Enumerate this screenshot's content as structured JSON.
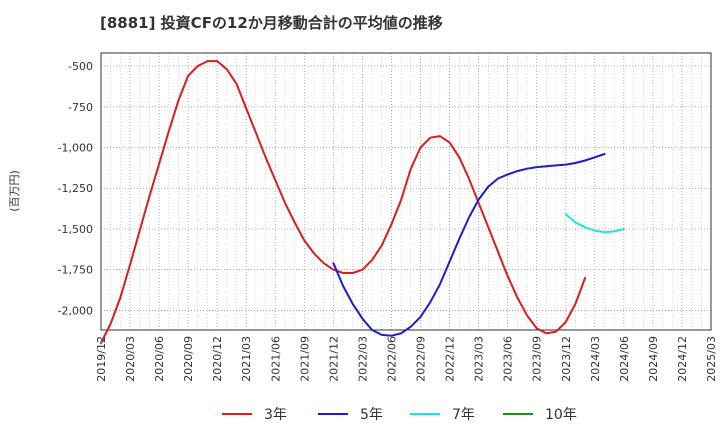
{
  "chart_data": {
    "type": "line",
    "title": "[8881]  投資CFの12か月移動合計の平均値の推移",
    "ylabel": "(百万円)",
    "xlabel": "",
    "ylim": [
      -2120,
      -420
    ],
    "y_ticks": [
      -500,
      -750,
      -1000,
      -1250,
      -1500,
      -1750,
      -2000
    ],
    "y_tick_labels": [
      "-500",
      "-750",
      "-1,000",
      "-1,250",
      "-1,500",
      "-1,750",
      "-2,000"
    ],
    "x_tick_labels": [
      "2019/12",
      "2020/03",
      "2020/06",
      "2020/09",
      "2020/12",
      "2021/03",
      "2021/06",
      "2021/09",
      "2021/12",
      "2022/03",
      "2022/06",
      "2022/09",
      "2022/12",
      "2023/03",
      "2023/06",
      "2023/09",
      "2023/12",
      "2024/03",
      "2024/06",
      "2024/09",
      "2024/12",
      "2025/03"
    ],
    "grid": true,
    "legend_position": "bottom",
    "series": [
      {
        "name": "3年",
        "color": "#dd1c1c",
        "start_index": 0,
        "values": [
          -2200,
          -2080,
          -1920,
          -1720,
          -1510,
          -1300,
          -1100,
          -900,
          -710,
          -560,
          -500,
          -470,
          -470,
          -520,
          -610,
          -760,
          -910,
          -1060,
          -1200,
          -1340,
          -1460,
          -1570,
          -1650,
          -1710,
          -1750,
          -1770,
          -1770,
          -1750,
          -1690,
          -1600,
          -1470,
          -1320,
          -1130,
          -1000,
          -940,
          -930,
          -970,
          -1060,
          -1190,
          -1340,
          -1490,
          -1640,
          -1790,
          -1920,
          -2030,
          -2110,
          -2140,
          -2130,
          -2070,
          -1960,
          -1800
        ]
      },
      {
        "name": "5年",
        "color": "#1c1cd6",
        "start_index": 24,
        "values": [
          -1710,
          -1850,
          -1960,
          -2050,
          -2120,
          -2150,
          -2155,
          -2140,
          -2100,
          -2040,
          -1950,
          -1840,
          -1700,
          -1560,
          -1430,
          -1320,
          -1240,
          -1190,
          -1165,
          -1145,
          -1130,
          -1120,
          -1115,
          -1110,
          -1105,
          -1095,
          -1080,
          -1060,
          -1040
        ]
      },
      {
        "name": "7年",
        "color": "#22e0e0",
        "start_index": 48,
        "values": [
          -1410,
          -1460,
          -1490,
          -1510,
          -1520,
          -1515,
          -1500
        ]
      },
      {
        "name": "10年",
        "color": "#1c8c1c",
        "start_index": 0,
        "values": []
      }
    ]
  }
}
